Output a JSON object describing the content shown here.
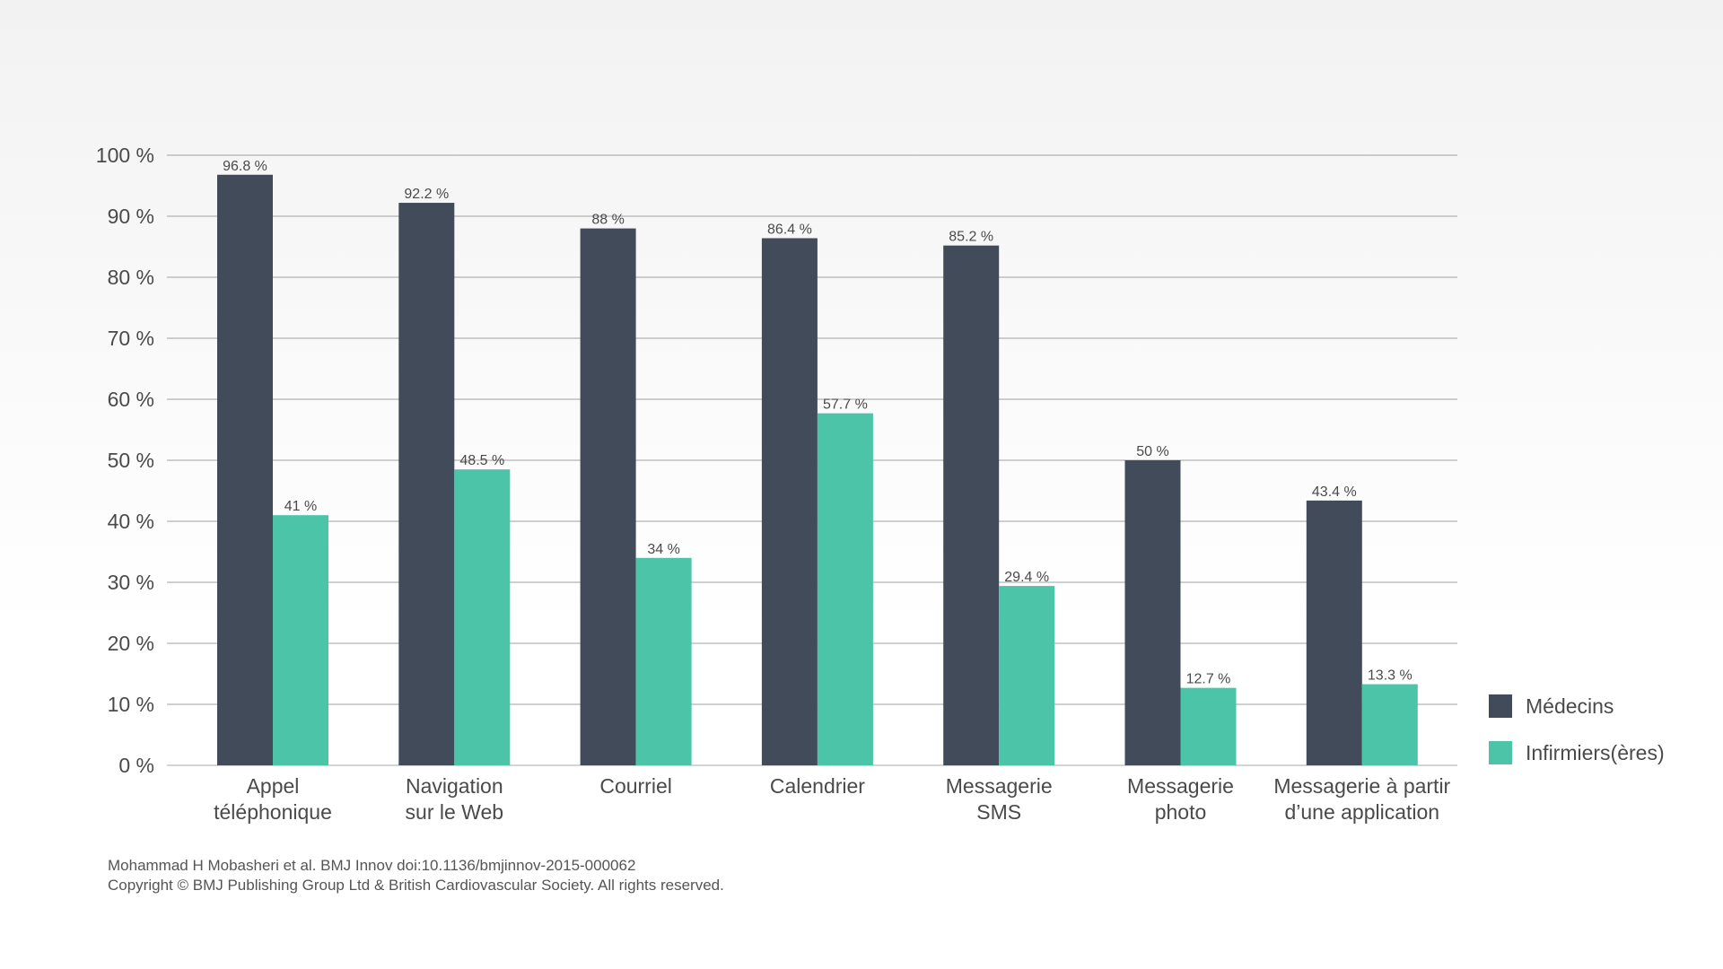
{
  "chart_data": {
    "type": "bar",
    "categories": [
      [
        "Appel",
        "téléphonique"
      ],
      [
        "Navigation",
        "sur le Web"
      ],
      [
        "Courriel"
      ],
      [
        "Calendrier"
      ],
      [
        "Messagerie",
        "SMS"
      ],
      [
        "Messagerie",
        "photo"
      ],
      [
        "Messagerie à partir",
        "d’une application"
      ]
    ],
    "series": [
      {
        "name": "Médecins",
        "color": "#424b5a",
        "values": [
          96.8,
          92.2,
          88,
          86.4,
          85.2,
          50,
          43.4
        ],
        "labels": [
          "96.8 %",
          "92.2 %",
          "88 %",
          "86.4 %",
          "85.2 %",
          "50 %",
          "43.4 %"
        ]
      },
      {
        "name": "Infirmiers(ères)",
        "color": "#4bc4a7",
        "values": [
          41,
          48.5,
          34,
          57.7,
          29.4,
          12.7,
          13.3
        ],
        "labels": [
          "41 %",
          "48.5 %",
          "34 %",
          "57.7 %",
          "29.4 %",
          "12.7 %",
          "13.3 %"
        ]
      }
    ],
    "ylim": [
      0,
      100
    ],
    "yticks": [
      0,
      10,
      20,
      30,
      40,
      50,
      60,
      70,
      80,
      90,
      100
    ],
    "ytick_labels": [
      "0 %",
      "10 %",
      "20 %",
      "30 %",
      "40 %",
      "50 %",
      "60 %",
      "70 %",
      "80 %",
      "90 %",
      "100 %"
    ],
    "grid": true,
    "legend_position": "bottom-right",
    "title": "",
    "xlabel": "",
    "ylabel": ""
  },
  "footer": {
    "citation": "Mohammad H Mobasheri et al. BMJ Innov doi:10.1136/bmjinnov-2015-000062",
    "copyright": "Copyright © BMJ Publishing Group Ltd & British Cardiovascular Society. All rights reserved."
  }
}
